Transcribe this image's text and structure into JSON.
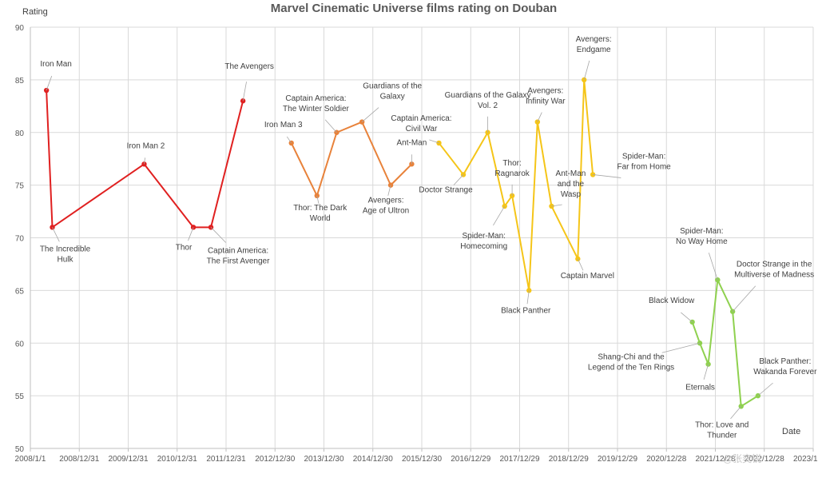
{
  "chart_data": {
    "type": "line",
    "title": "Marvel Cinematic Universe films rating on Douban",
    "ylabel": "Rating",
    "xlabel": "Date",
    "ylim": [
      50,
      90
    ],
    "yticks": [
      50,
      55,
      60,
      65,
      70,
      75,
      80,
      85,
      90
    ],
    "xlim": [
      "2008-01-01",
      "2023-12-28"
    ],
    "xticks": [
      "2008/1/1",
      "2008/12/31",
      "2009/12/31",
      "2010/12/31",
      "2011/12/31",
      "2012/12/30",
      "2013/12/30",
      "2014/12/30",
      "2015/12/30",
      "2016/12/29",
      "2017/12/29",
      "2018/12/29",
      "2019/12/29",
      "2020/12/28",
      "2021/12/28",
      "2022/12/28",
      "2023/12/28"
    ],
    "grid": true,
    "series": [
      {
        "color": "#e02020",
        "points": [
          {
            "film": "Iron Man",
            "date": "2008-04-30",
            "rating": 84
          },
          {
            "film": "The Incredible Hulk",
            "date": "2008-06-13",
            "rating": 71
          },
          {
            "film": "Iron Man 2",
            "date": "2010-04-29",
            "rating": 77
          },
          {
            "film": "Thor",
            "date": "2011-05-01",
            "rating": 71
          },
          {
            "film": "Captain America: The First Avenger",
            "date": "2011-09-09",
            "rating": 71
          },
          {
            "film": "The Avengers",
            "date": "2012-05-05",
            "rating": 83
          }
        ]
      },
      {
        "color": "#e8823a",
        "points": [
          {
            "film": "Iron Man 3",
            "date": "2013-05-01",
            "rating": 79
          },
          {
            "film": "Thor: The Dark World",
            "date": "2013-11-08",
            "rating": 74
          },
          {
            "film": "Captain America: The Winter Soldier",
            "date": "2014-04-04",
            "rating": 80
          },
          {
            "film": "Guardians of the Galaxy",
            "date": "2014-10-10",
            "rating": 81
          },
          {
            "film": "Avengers: Age of Ultron",
            "date": "2015-05-12",
            "rating": 75
          },
          {
            "film": "Ant-Man",
            "date": "2015-10-16",
            "rating": 77
          }
        ]
      },
      {
        "color": "#f5c518",
        "points": [
          {
            "film": "Captain America: Civil War",
            "date": "2016-05-06",
            "rating": 79
          },
          {
            "film": "Doctor Strange",
            "date": "2016-11-04",
            "rating": 76
          },
          {
            "film": "Guardians of the Galaxy Vol. 2",
            "date": "2017-05-05",
            "rating": 80
          },
          {
            "film": "Spider-Man: Homecoming",
            "date": "2017-09-08",
            "rating": 73
          },
          {
            "film": "Thor: Ragnarok",
            "date": "2017-11-03",
            "rating": 74
          },
          {
            "film": "Black Panther",
            "date": "2018-03-09",
            "rating": 65
          },
          {
            "film": "Avengers: Infinity War",
            "date": "2018-05-11",
            "rating": 81
          },
          {
            "film": "Ant-Man and the Wasp",
            "date": "2018-08-24",
            "rating": 73
          },
          {
            "film": "Captain Marvel",
            "date": "2019-03-08",
            "rating": 68
          },
          {
            "film": "Avengers: Endgame",
            "date": "2019-04-24",
            "rating": 85
          },
          {
            "film": "Spider-Man: Far from Home",
            "date": "2019-06-28",
            "rating": 76
          }
        ]
      },
      {
        "color": "#8fd14f",
        "points": [
          {
            "film": "Black Widow",
            "date": "2021-07-09",
            "rating": 62
          },
          {
            "film": "Shang-Chi and the Legend of the Ten Rings",
            "date": "2021-09-03",
            "rating": 60
          },
          {
            "film": "Eternals",
            "date": "2021-11-05",
            "rating": 58
          },
          {
            "film": "Spider-Man: No Way Home",
            "date": "2022-01-14",
            "rating": 66
          },
          {
            "film": "Doctor Strange in the Multiverse of Madness",
            "date": "2022-05-06",
            "rating": 63
          },
          {
            "film": "Thor: Love and Thunder",
            "date": "2022-07-08",
            "rating": 54
          },
          {
            "film": "Black Panther: Wakanda Forever",
            "date": "2022-11-11",
            "rating": 55
          }
        ]
      }
    ]
  },
  "watermark": "@张奕锐"
}
